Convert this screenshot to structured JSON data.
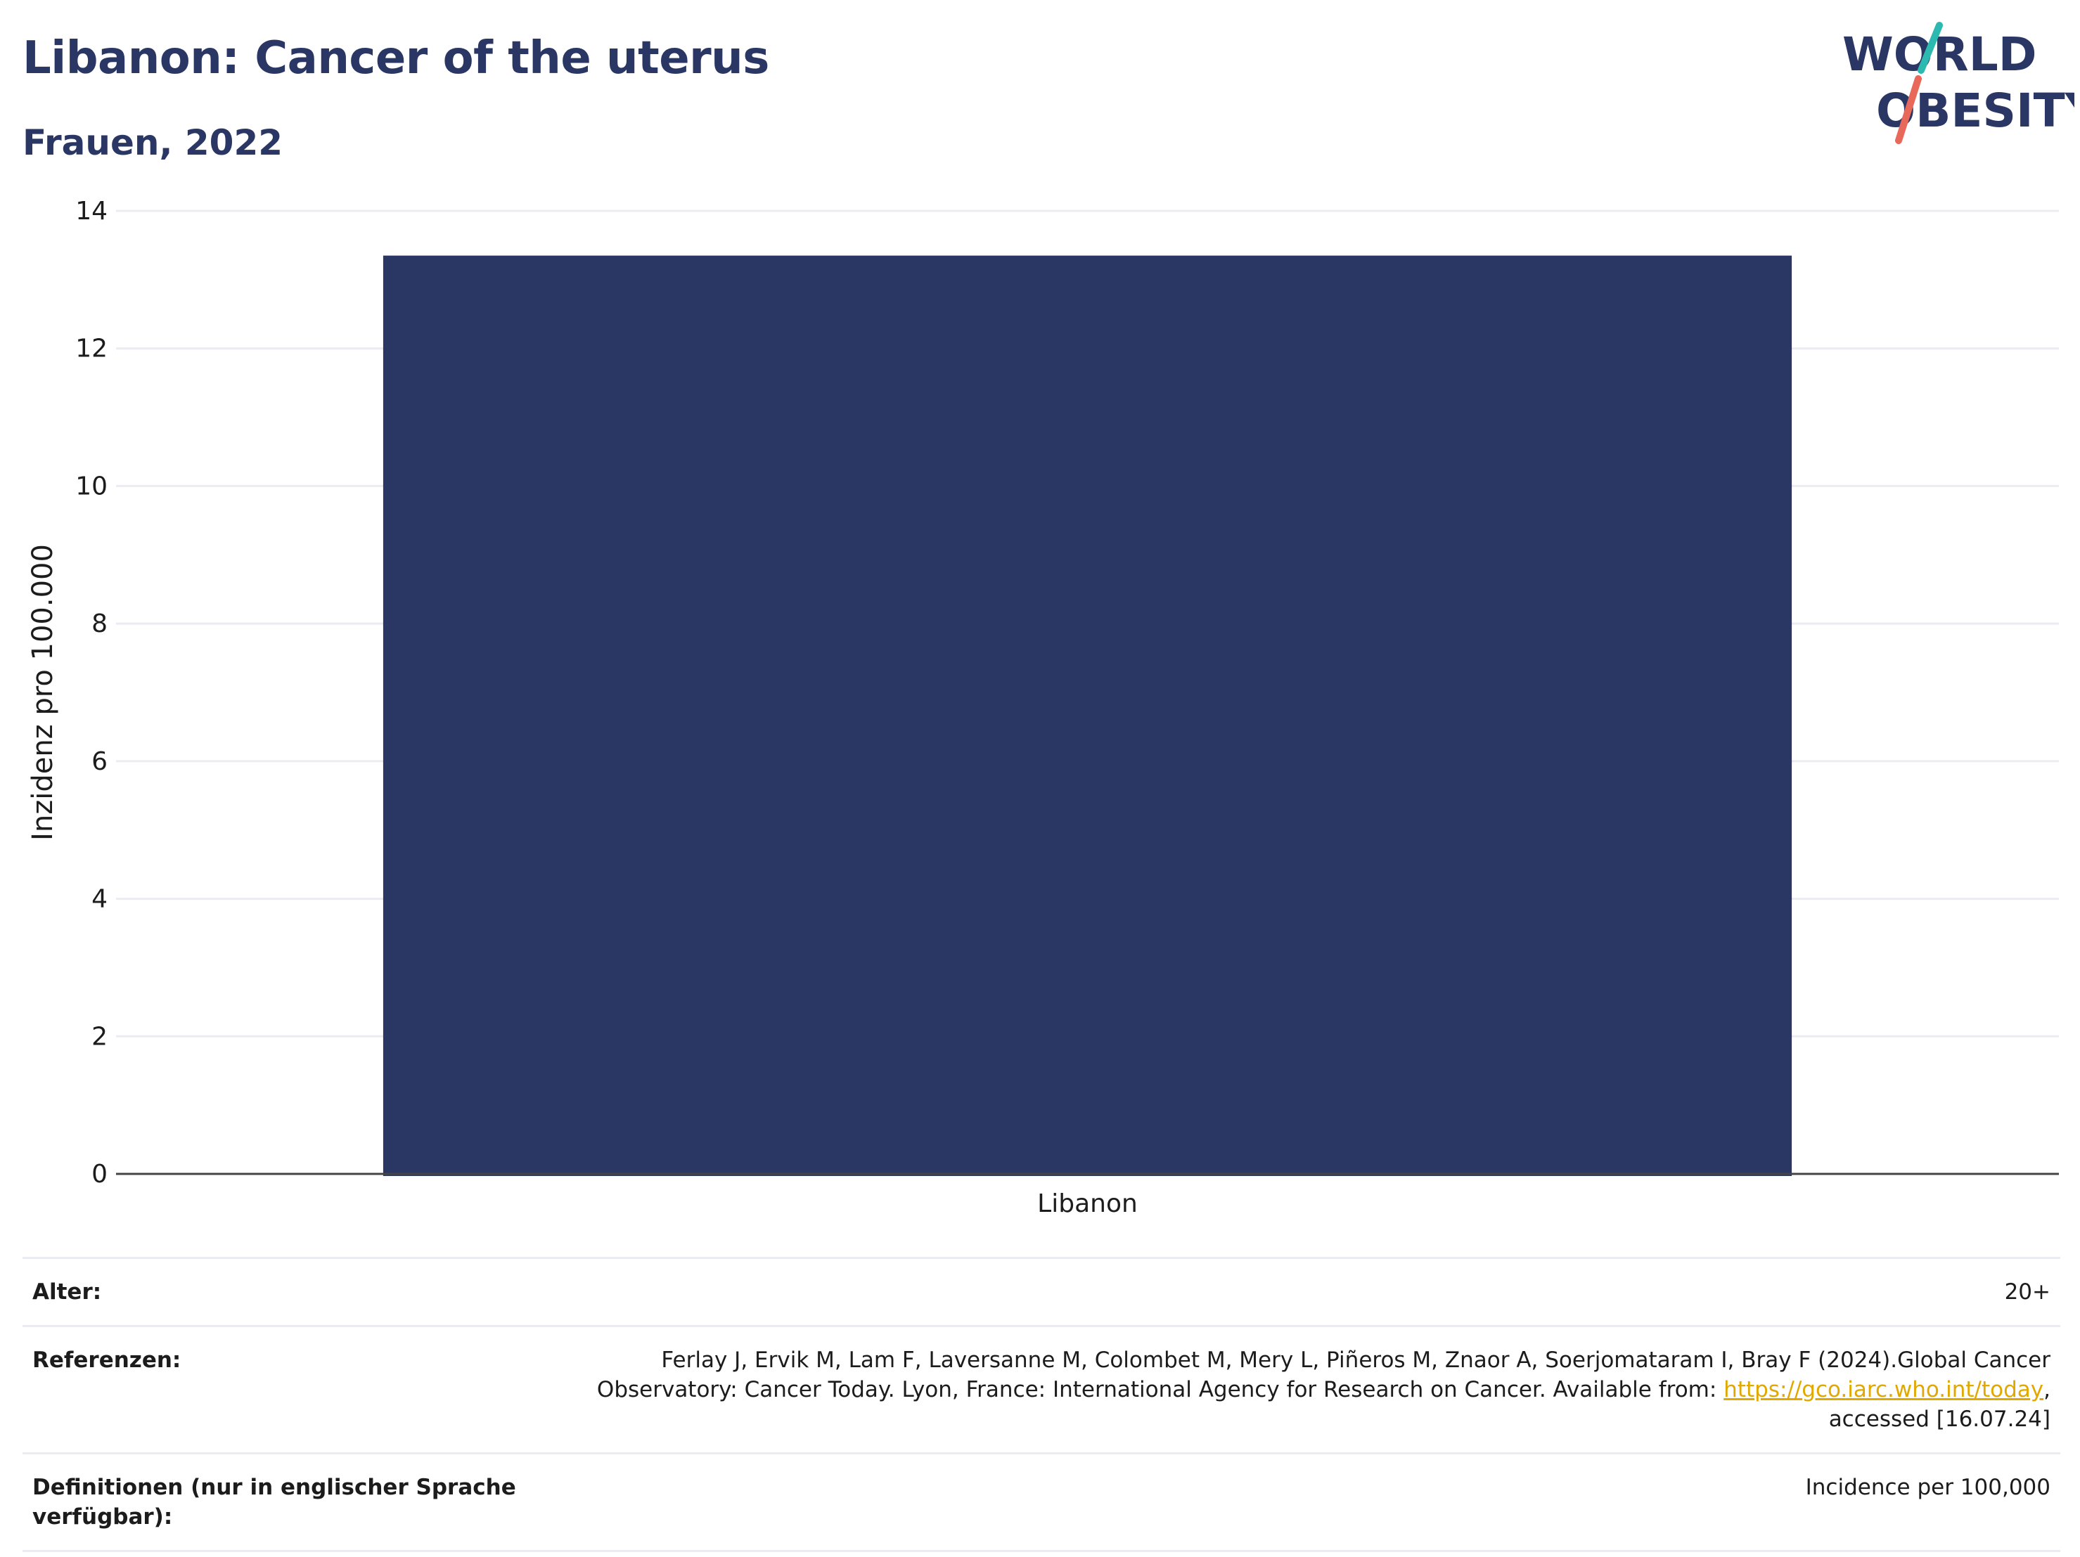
{
  "header": {
    "title": "Libanon: Cancer of the uterus",
    "subtitle": "Frauen, 2022"
  },
  "logo": {
    "line1": "WORLD",
    "line2": "OBESITY",
    "accent_teal": "#2bb9b0",
    "accent_coral": "#e8685a",
    "text_color": "#2a3664"
  },
  "chart_data": {
    "type": "bar",
    "categories": [
      "Libanon"
    ],
    "values": [
      13.35
    ],
    "title": "Libanon: Cancer of the uterus",
    "subtitle": "Frauen, 2022",
    "xlabel": "",
    "ylabel": "Inzidenz pro 100.000",
    "ylim": [
      0,
      14
    ],
    "yticks": [
      0,
      2,
      4,
      6,
      8,
      10,
      12,
      14
    ],
    "grid": true,
    "bar_color": "#2a3664"
  },
  "info": {
    "age_label": "Alter:",
    "age_value": "20+",
    "ref_label": "Referenzen:",
    "ref_text": "Ferlay J, Ervik M, Lam F, Laversanne M, Colombet M, Mery L, Piñeros M, Znaor A, Soerjomataram I, Bray F (2024).Global Cancer Observatory: Cancer Today. Lyon, France: International Agency for Research on Cancer. Available from: ",
    "ref_link": "https://gco.iarc.who.int/today",
    "ref_suffix": ", accessed [16.07.24]",
    "def_label": "Definitionen (nur in englischer Sprache verfügbar):",
    "def_value": "Incidence per 100,000"
  }
}
